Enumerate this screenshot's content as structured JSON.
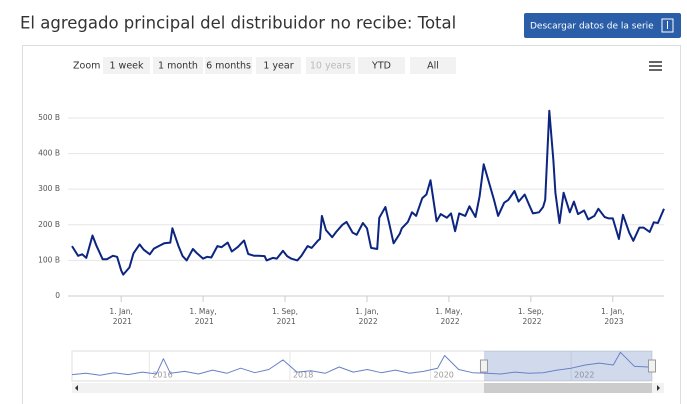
{
  "title": "El agregado principal del distribuidor no recibe: Total",
  "download_button": "Descargar datos de la serie",
  "zoom": {
    "label": "Zoom",
    "buttons": [
      {
        "label": "1 week",
        "enabled": true
      },
      {
        "label": "1 month",
        "enabled": true
      },
      {
        "label": "6 months",
        "enabled": true
      },
      {
        "label": "1 year",
        "enabled": true
      },
      {
        "label": "10 years",
        "enabled": false
      },
      {
        "label": "YTD",
        "enabled": true
      },
      {
        "label": "All",
        "enabled": true
      }
    ]
  },
  "chart_data": [
    {
      "type": "line",
      "color": "#0c2580",
      "grid": true,
      "x": [
        -2.4,
        -2.1,
        -1.9,
        -1.7,
        -1.4,
        -1.2,
        -0.9,
        -0.7,
        -0.4,
        -0.2,
        0.0,
        0.1,
        0.4,
        0.6,
        0.9,
        1.1,
        1.4,
        1.6,
        1.9,
        2.1,
        2.4,
        2.5,
        2.8,
        3.0,
        3.2,
        3.5,
        3.7,
        4.0,
        4.2,
        4.4,
        4.7,
        4.9,
        5.2,
        5.4,
        5.7,
        5.9,
        6.0,
        6.2,
        6.5,
        6.7,
        7.0,
        7.1,
        7.4,
        7.6,
        7.9,
        8.1,
        8.3,
        8.6,
        8.8,
        9.1,
        9.3,
        9.6,
        9.7,
        9.8,
        10.0,
        10.3,
        10.5,
        10.8,
        11.0,
        11.3,
        11.5,
        11.8,
        12.0,
        12.2,
        12.5,
        12.6,
        12.9,
        13.1,
        13.3,
        13.6,
        13.7,
        14.0,
        14.2,
        14.4,
        14.7,
        14.9,
        15.1,
        15.4,
        15.6,
        15.9,
        16.1,
        16.3,
        16.5,
        16.8,
        17.0,
        17.3,
        17.5,
        17.7,
        18.0,
        18.2,
        18.4,
        18.7,
        18.9,
        19.2,
        19.4,
        19.7,
        19.9,
        20.1,
        20.4,
        20.6,
        20.7,
        20.9,
        21.1,
        21.2,
        21.4,
        21.6,
        21.9,
        22.1,
        22.3,
        22.6,
        22.8,
        23.1,
        23.3,
        23.6,
        23.8,
        24.0,
        24.3,
        24.5,
        24.8,
        25.0,
        25.3,
        25.5,
        25.8,
        26.0,
        26.2,
        26.5
      ],
      "values": [
        140,
        113,
        117,
        107,
        170,
        140,
        103,
        103,
        113,
        110,
        72,
        60,
        80,
        120,
        145,
        130,
        117,
        133,
        142,
        148,
        150,
        190,
        140,
        112,
        100,
        132,
        120,
        105,
        110,
        108,
        140,
        137,
        150,
        125,
        138,
        150,
        156,
        118,
        113,
        113,
        112,
        100,
        107,
        105,
        127,
        112,
        105,
        100,
        113,
        140,
        135,
        155,
        160,
        225,
        185,
        165,
        180,
        200,
        208,
        178,
        172,
        205,
        190,
        135,
        132,
        220,
        250,
        200,
        148,
        175,
        190,
        208,
        235,
        225,
        275,
        285,
        325,
        210,
        230,
        220,
        232,
        182,
        232,
        225,
        252,
        222,
        280,
        370,
        310,
        270,
        225,
        262,
        270,
        295,
        265,
        285,
        258,
        232,
        235,
        250,
        270,
        520,
        380,
        290,
        205,
        290,
        235,
        265,
        230,
        240,
        215,
        225,
        245,
        222,
        218,
        218,
        160,
        228,
        178,
        155,
        192,
        192,
        180,
        207,
        205,
        245
      ],
      "xlim": [
        -2.4,
        26.5
      ],
      "xticks": [
        {
          "value": 0,
          "label": "1. Jan, 2021"
        },
        {
          "value": 4,
          "label": "1. May, 2021"
        },
        {
          "value": 8,
          "label": "1. Sep, 2021"
        },
        {
          "value": 12,
          "label": "1. Jan, 2022"
        },
        {
          "value": 16,
          "label": "1. May, 2022"
        },
        {
          "value": 20,
          "label": "1. Sep, 2022"
        },
        {
          "value": 24,
          "label": "1. Jan, 2023"
        }
      ],
      "ylim": [
        0,
        535
      ],
      "yticks": [
        0,
        {
          "value": 100,
          "label": "100 B"
        },
        {
          "value": 200,
          "label": "200 B"
        },
        {
          "value": 300,
          "label": "300 B"
        },
        {
          "value": 400,
          "label": "400 B"
        },
        {
          "value": 500,
          "label": "500 B"
        }
      ]
    },
    {
      "type": "line",
      "color": "#6a80c6",
      "x": [
        2014.9,
        2015.1,
        2015.3,
        2015.5,
        2015.7,
        2015.9,
        2016.1,
        2016.2,
        2016.3,
        2016.5,
        2016.7,
        2016.9,
        2017.1,
        2017.3,
        2017.5,
        2017.7,
        2017.9,
        2018.1,
        2018.3,
        2018.5,
        2018.7,
        2018.9,
        2019.1,
        2019.3,
        2019.5,
        2019.7,
        2019.9,
        2020.1,
        2020.2,
        2020.4,
        2020.6,
        2020.8,
        2021.0,
        2021.2,
        2021.4,
        2021.6,
        2021.8,
        2022.0,
        2022.2,
        2022.4,
        2022.6,
        2022.7,
        2022.9,
        2023.1
      ],
      "values": [
        100,
        120,
        90,
        130,
        100,
        140,
        110,
        350,
        120,
        150,
        110,
        170,
        120,
        200,
        130,
        180,
        330,
        140,
        160,
        120,
        220,
        140,
        180,
        130,
        170,
        120,
        150,
        200,
        400,
        180,
        130,
        120,
        110,
        140,
        120,
        130,
        170,
        200,
        250,
        280,
        250,
        450,
        230,
        220
      ],
      "xlim": [
        2014.9,
        2023.15
      ],
      "ylim": [
        0,
        470
      ],
      "xticks": [
        2016,
        2018,
        2020,
        2022
      ],
      "selection": [
        2020.76,
        2023.15
      ]
    }
  ]
}
